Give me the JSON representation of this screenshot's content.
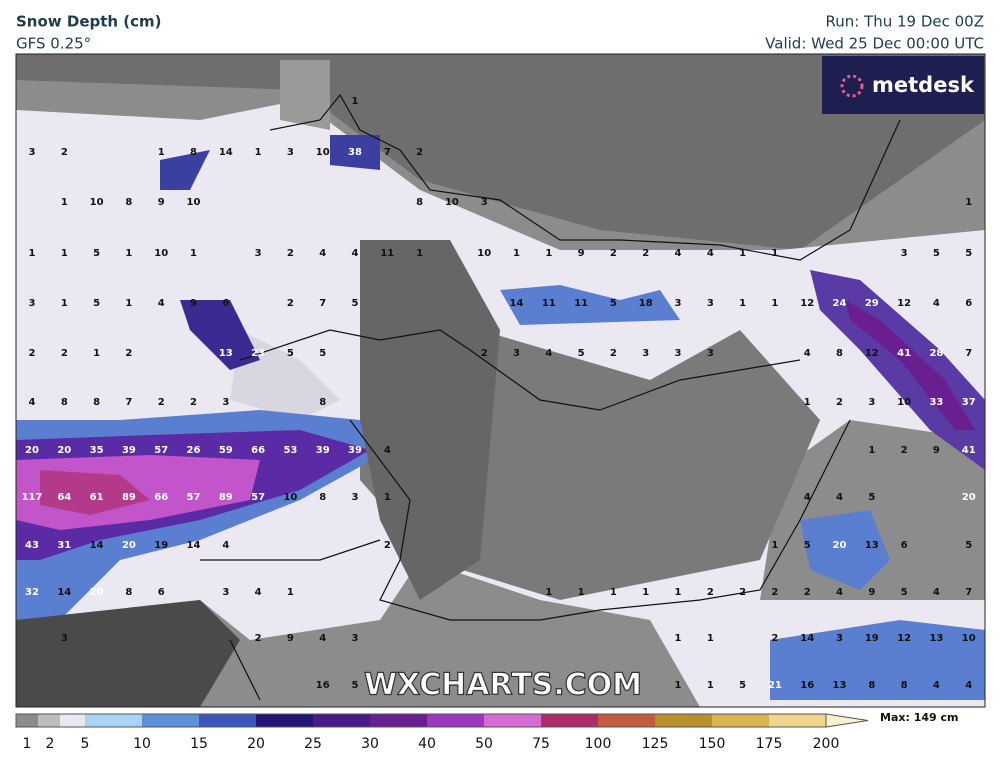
{
  "header": {
    "title": "Snow Depth (cm)",
    "model": "GFS 0.25°",
    "run": "Run: Thu 19 Dec 00Z",
    "valid": "Valid: Wed 25 Dec 00:00 UTC"
  },
  "logo": "metdesk",
  "watermark": "WXCHARTS.COM",
  "map": {
    "rows": [
      [
        null,
        null,
        null,
        null,
        null,
        null,
        null,
        null,
        null,
        null,
        1,
        null,
        null,
        null,
        null,
        null,
        null,
        null,
        null,
        null,
        null,
        null,
        null,
        null,
        null,
        null,
        null,
        null,
        null,
        null
      ],
      [
        3,
        2,
        null,
        null,
        1,
        8,
        14,
        1,
        3,
        10,
        38,
        7,
        2,
        null,
        null,
        null,
        null,
        null,
        null,
        null,
        null,
        null,
        null,
        null,
        null,
        null,
        null,
        null,
        null,
        null
      ],
      [
        null,
        1,
        10,
        8,
        9,
        10,
        null,
        null,
        null,
        null,
        null,
        null,
        8,
        10,
        3,
        null,
        null,
        null,
        null,
        null,
        null,
        null,
        null,
        null,
        null,
        null,
        null,
        null,
        null,
        1
      ],
      [
        1,
        1,
        5,
        1,
        10,
        1,
        null,
        3,
        2,
        4,
        4,
        11,
        1,
        null,
        10,
        1,
        1,
        9,
        2,
        2,
        4,
        4,
        1,
        1,
        null,
        null,
        null,
        3,
        5,
        5
      ],
      [
        3,
        1,
        5,
        1,
        4,
        9,
        6,
        null,
        2,
        7,
        5,
        null,
        null,
        null,
        null,
        14,
        11,
        11,
        5,
        18,
        3,
        3,
        1,
        1,
        12,
        24,
        29,
        12,
        4,
        6
      ],
      [
        2,
        2,
        1,
        2,
        null,
        null,
        13,
        23,
        5,
        5,
        null,
        null,
        null,
        null,
        2,
        3,
        4,
        5,
        2,
        3,
        3,
        3,
        null,
        null,
        4,
        8,
        12,
        41,
        28,
        7
      ],
      [
        4,
        8,
        8,
        7,
        2,
        2,
        3,
        null,
        null,
        8,
        null,
        null,
        null,
        null,
        null,
        null,
        null,
        null,
        null,
        null,
        null,
        null,
        null,
        null,
        1,
        2,
        3,
        10,
        33,
        37
      ],
      [
        20,
        20,
        35,
        39,
        57,
        26,
        59,
        66,
        53,
        39,
        39,
        4,
        null,
        null,
        null,
        null,
        null,
        null,
        null,
        null,
        null,
        null,
        null,
        null,
        null,
        null,
        1,
        2,
        9,
        41
      ],
      [
        117,
        64,
        61,
        89,
        66,
        57,
        89,
        57,
        10,
        8,
        3,
        1,
        null,
        null,
        null,
        null,
        null,
        null,
        null,
        null,
        null,
        null,
        null,
        null,
        4,
        4,
        5,
        null,
        null,
        20
      ],
      [
        43,
        31,
        14,
        20,
        19,
        14,
        4,
        null,
        null,
        null,
        null,
        2,
        null,
        null,
        null,
        null,
        null,
        null,
        null,
        null,
        null,
        null,
        null,
        1,
        5,
        20,
        13,
        6,
        null,
        5
      ],
      [
        32,
        14,
        20,
        8,
        6,
        null,
        3,
        4,
        1,
        null,
        null,
        null,
        null,
        null,
        null,
        null,
        1,
        1,
        1,
        1,
        1,
        2,
        2,
        2,
        2,
        4,
        9,
        5,
        4,
        7
      ],
      [
        null,
        3,
        null,
        null,
        null,
        null,
        null,
        2,
        9,
        4,
        3,
        null,
        null,
        null,
        null,
        null,
        null,
        null,
        null,
        null,
        1,
        1,
        null,
        2,
        14,
        3,
        19,
        12,
        13,
        10
      ],
      [
        null,
        null,
        null,
        null,
        null,
        null,
        null,
        null,
        null,
        16,
        5,
        null,
        null,
        null,
        null,
        null,
        null,
        null,
        null,
        null,
        1,
        1,
        5,
        21,
        16,
        13,
        8,
        8,
        4,
        4
      ]
    ]
  },
  "legend": {
    "ticks": [
      1,
      2,
      5,
      10,
      15,
      20,
      25,
      30,
      40,
      50,
      75,
      100,
      125,
      150,
      175,
      200
    ],
    "max": "Max: 149 cm"
  }
}
